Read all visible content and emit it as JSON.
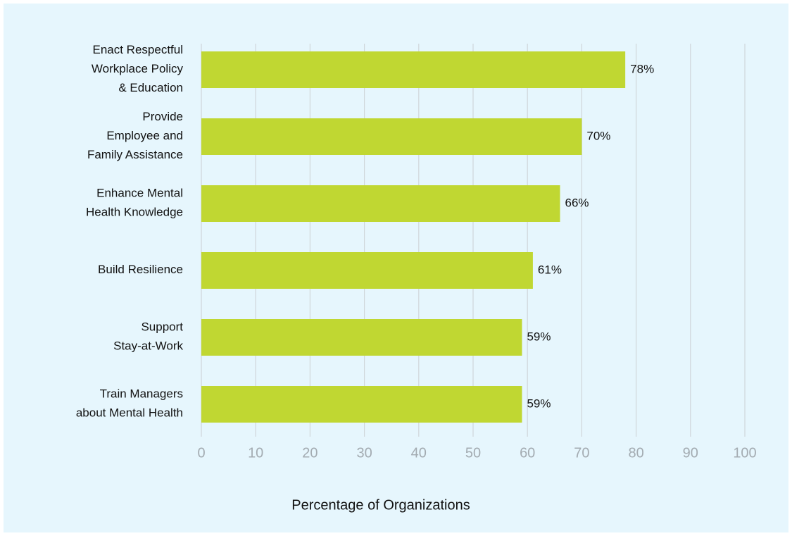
{
  "chart_data": {
    "type": "hbar",
    "categories": [
      "Enact Respectful\nWorkplace Policy\n& Education",
      "Provide\nEmployee and\nFamily Assistance",
      "Enhance Mental\nHealth Knowledge",
      "Build Resilience",
      "Support\nStay-at-Work",
      "Train Managers\nabout Mental Health"
    ],
    "values": [
      78,
      70,
      66,
      61,
      59,
      59
    ],
    "value_labels": [
      "78%",
      "70%",
      "66%",
      "61%",
      "59%",
      "59%"
    ],
    "color": "#c0d732",
    "xlabel": "Percentage of Organizations",
    "xlim": [
      0,
      100
    ],
    "xticks": [
      0,
      10,
      20,
      30,
      40,
      50,
      60,
      70,
      80,
      90,
      100
    ],
    "grid": true
  }
}
